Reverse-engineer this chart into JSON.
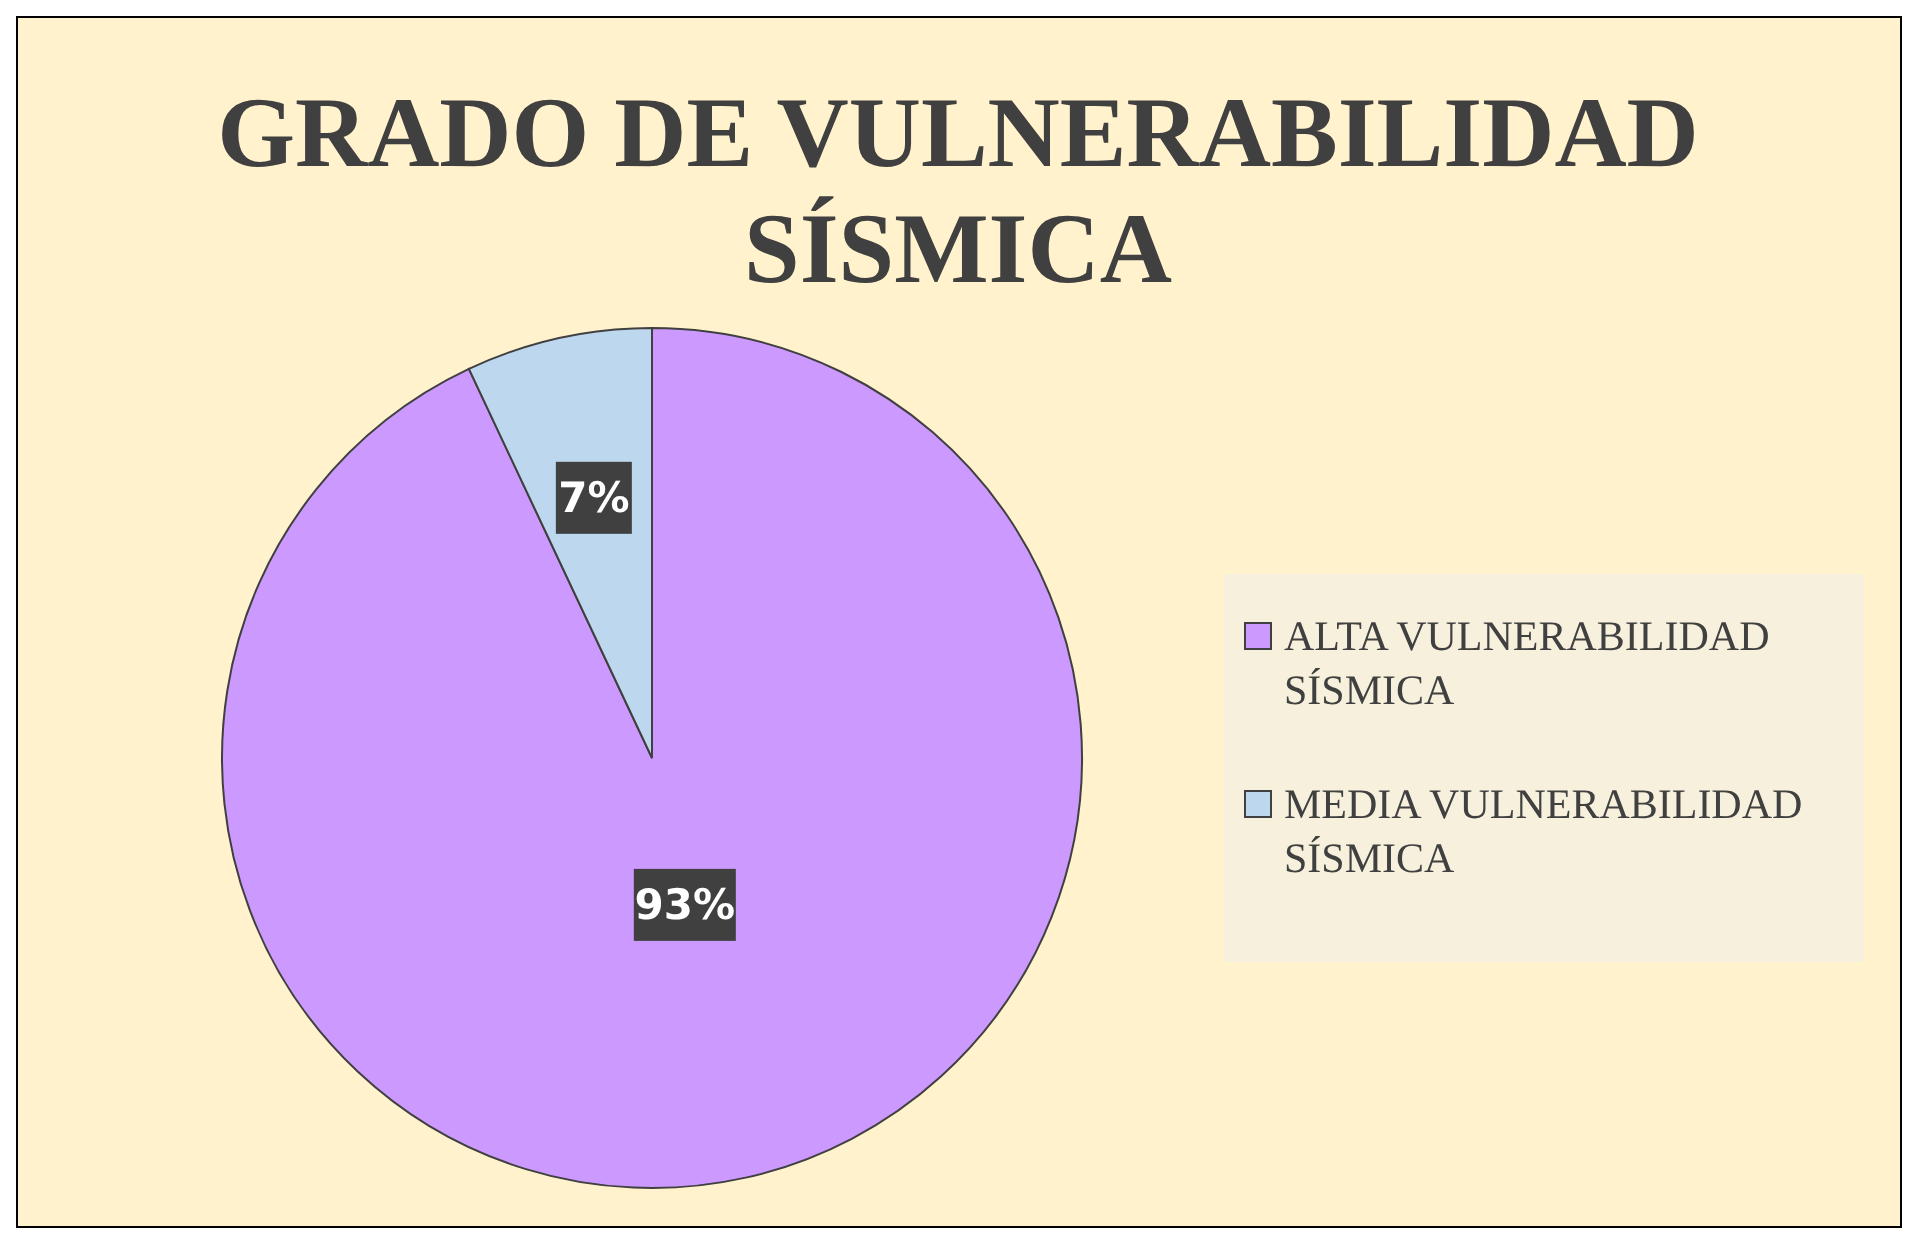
{
  "chart_data": {
    "type": "pie",
    "title": "GRADO DE VULNERABILIDAD SÍSMICA",
    "categories": [
      "ALTA VULNERABILIDAD SÍSMICA",
      "MEDIA VULNERABILIDAD SÍSMICA"
    ],
    "values": [
      93,
      7
    ],
    "colors": [
      "#cc99ff",
      "#bdd7ee"
    ],
    "value_labels": [
      "93%",
      "7%"
    ],
    "legend": "right"
  }
}
